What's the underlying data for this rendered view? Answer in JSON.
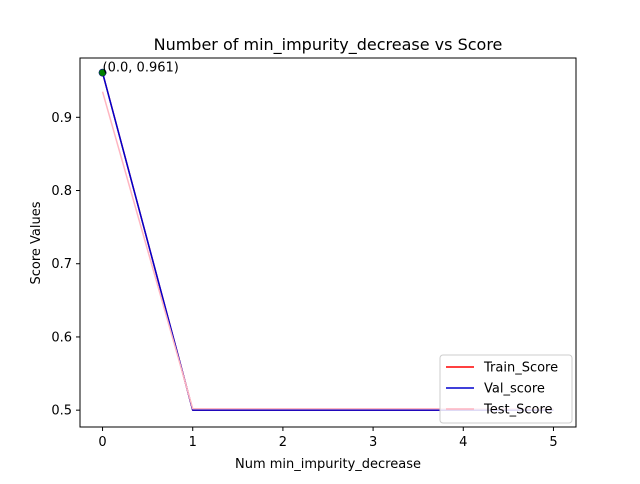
{
  "chart_data": {
    "type": "line",
    "title": "Number of min_impurity_decrease vs Score",
    "xlabel": "Num min_impurity_decrease",
    "ylabel": "Score Values",
    "x": [
      0,
      1,
      2,
      3,
      4,
      5
    ],
    "xticks": [
      "0",
      "1",
      "2",
      "3",
      "4",
      "5"
    ],
    "yticks": [
      "0.5",
      "0.6",
      "0.7",
      "0.8",
      "0.9"
    ],
    "xlim": [
      -0.25,
      5.25
    ],
    "ylim": [
      0.477,
      0.981
    ],
    "grid": false,
    "legend_position": "lower-right",
    "series": [
      {
        "name": "Train_Score",
        "color": "#ff0000",
        "values": [
          0.961,
          0.5,
          0.5,
          0.5,
          0.5,
          0.5
        ]
      },
      {
        "name": "Val_score",
        "color": "#0000cd",
        "values": [
          0.961,
          0.5,
          0.5,
          0.5,
          0.5,
          0.5
        ]
      },
      {
        "name": "Test_Score",
        "color": "#ffb6c1",
        "values": [
          0.935,
          0.502,
          0.502,
          0.502,
          0.502,
          0.502
        ]
      }
    ],
    "highlight_point": {
      "x": 0.0,
      "y": 0.961,
      "label": "(0.0, 0.961)",
      "color": "#008000"
    }
  }
}
